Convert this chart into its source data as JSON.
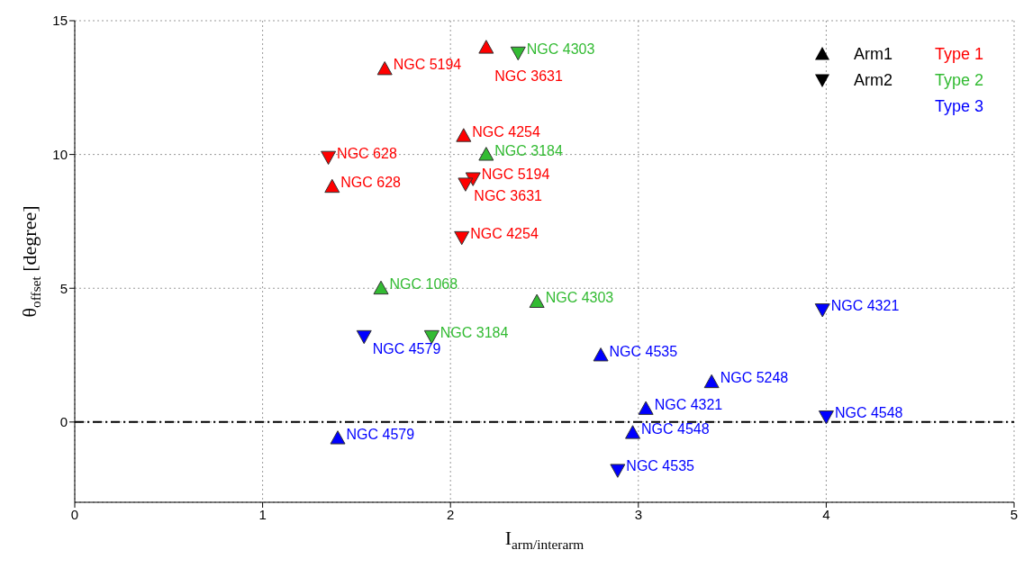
{
  "chart_data": {
    "type": "scatter",
    "xlabel": "I$_{arm/interarm}$",
    "ylabel": "θ$_{offset}$ [degree]",
    "xlim": [
      0,
      5
    ],
    "xticks": [
      0,
      1,
      2,
      3,
      4,
      5
    ],
    "ylim": [
      -3,
      15
    ],
    "yticks": [
      0,
      5,
      10,
      15
    ],
    "grid": true,
    "ref_lines": [
      {
        "axis": "y",
        "value": 0,
        "color": "#000000",
        "line_style": "dashed"
      }
    ],
    "annotations": [
      "Arm1",
      "Arm2",
      "Type 1",
      "Type 2",
      "Type 3"
    ],
    "series": [
      {
        "color": "#ff0000",
        "marker": "triangle",
        "x": [
          2.19,
          1.65,
          2.07,
          1.37
        ],
        "values": [
          14.0,
          13.2,
          10.7,
          8.8
        ],
        "value_labels": [
          "NGC 3631",
          "NGC 5194",
          "NGC 4254",
          "NGC 628"
        ]
      },
      {
        "color": "#ff0000",
        "marker": "triangle-down",
        "x": [
          1.35,
          2.12,
          2.08,
          2.06
        ],
        "values": [
          9.9,
          9.1,
          8.9,
          6.9
        ],
        "value_labels": [
          "NGC 628",
          "NGC 5194",
          "NGC 3631",
          "NGC 4254"
        ]
      },
      {
        "color": "#33bb33",
        "marker": "triangle",
        "x": [
          2.19,
          1.63,
          2.46
        ],
        "values": [
          10.0,
          5.0,
          4.5
        ],
        "value_labels": [
          "NGC 3184",
          "NGC 1068",
          "NGC 4303"
        ]
      },
      {
        "color": "#33bb33",
        "marker": "triangle-down",
        "x": [
          2.36,
          1.9
        ],
        "values": [
          13.8,
          3.2
        ],
        "value_labels": [
          "NGC 4303",
          "NGC 3184"
        ]
      },
      {
        "color": "#0000ff",
        "marker": "triangle",
        "x": [
          2.8,
          3.39,
          3.04,
          2.97,
          1.4
        ],
        "values": [
          2.5,
          1.5,
          0.5,
          -0.4,
          -0.6
        ],
        "value_labels": [
          "NGC 4535",
          "NGC 5248",
          "NGC 4321",
          "NGC 4548",
          "NGC 4579"
        ]
      },
      {
        "color": "#0000ff",
        "marker": "triangle-down",
        "x": [
          1.54,
          3.98,
          4.0,
          2.89
        ],
        "values": [
          3.2,
          4.2,
          0.2,
          -1.8
        ],
        "value_labels": [
          "NGC 4579",
          "NGC 4321",
          "NGC 4548",
          "NGC 4535"
        ]
      }
    ]
  }
}
